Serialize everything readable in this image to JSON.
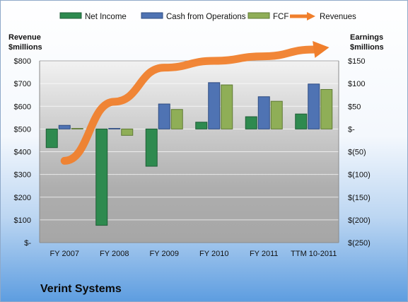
{
  "chart_data": {
    "type": "bar",
    "company": "Verint Systems",
    "categories": [
      "FY 2007",
      "FY 2008",
      "FY 2009",
      "FY 2010",
      "FY 2011",
      "TTM 10-2011"
    ],
    "series": [
      {
        "name": "Net Income",
        "axis": "right",
        "color": "#2e8a4f",
        "values": [
          -41,
          -212,
          -82,
          15,
          27,
          33
        ]
      },
      {
        "name": "Cash from Operations",
        "axis": "right",
        "color": "#4f73b3",
        "values": [
          8,
          0,
          55,
          102,
          71,
          99
        ]
      },
      {
        "name": "FCF",
        "axis": "right",
        "color": "#8fae57",
        "values": [
          0,
          -14,
          43,
          97,
          61,
          87
        ]
      }
    ],
    "line_series": {
      "name": "Revenues",
      "axis": "left",
      "color": "#f07f2c",
      "values": [
        360,
        620,
        770,
        800,
        820,
        850
      ]
    },
    "left_axis": {
      "title_line1": "Revenue",
      "title_line2": "$millions",
      "ylim": [
        0,
        800
      ],
      "ticks": [
        {
          "value": 800,
          "label": "$800"
        },
        {
          "value": 700,
          "label": "$700"
        },
        {
          "value": 600,
          "label": "$600"
        },
        {
          "value": 500,
          "label": "$500"
        },
        {
          "value": 400,
          "label": "$400"
        },
        {
          "value": 300,
          "label": "$300"
        },
        {
          "value": 200,
          "label": "$200"
        },
        {
          "value": 100,
          "label": "$100"
        },
        {
          "value": 0,
          "label": "$-"
        }
      ]
    },
    "right_axis": {
      "title_line1": "Earnings",
      "title_line2": "$millions",
      "ylim": [
        -250,
        150
      ],
      "ticks": [
        {
          "value": 150,
          "label": "$150"
        },
        {
          "value": 100,
          "label": "$100"
        },
        {
          "value": 50,
          "label": "$50"
        },
        {
          "value": 0,
          "label": "$-"
        },
        {
          "value": -50,
          "label": "$(50)"
        },
        {
          "value": -100,
          "label": "$(100)"
        },
        {
          "value": -150,
          "label": "$(150)"
        },
        {
          "value": -200,
          "label": "$(200)"
        },
        {
          "value": -250,
          "label": "$(250)"
        }
      ]
    },
    "legend": [
      "Net Income",
      "Cash from Operations",
      "FCF",
      "Revenues"
    ],
    "legend_position": "top",
    "grid": true
  }
}
